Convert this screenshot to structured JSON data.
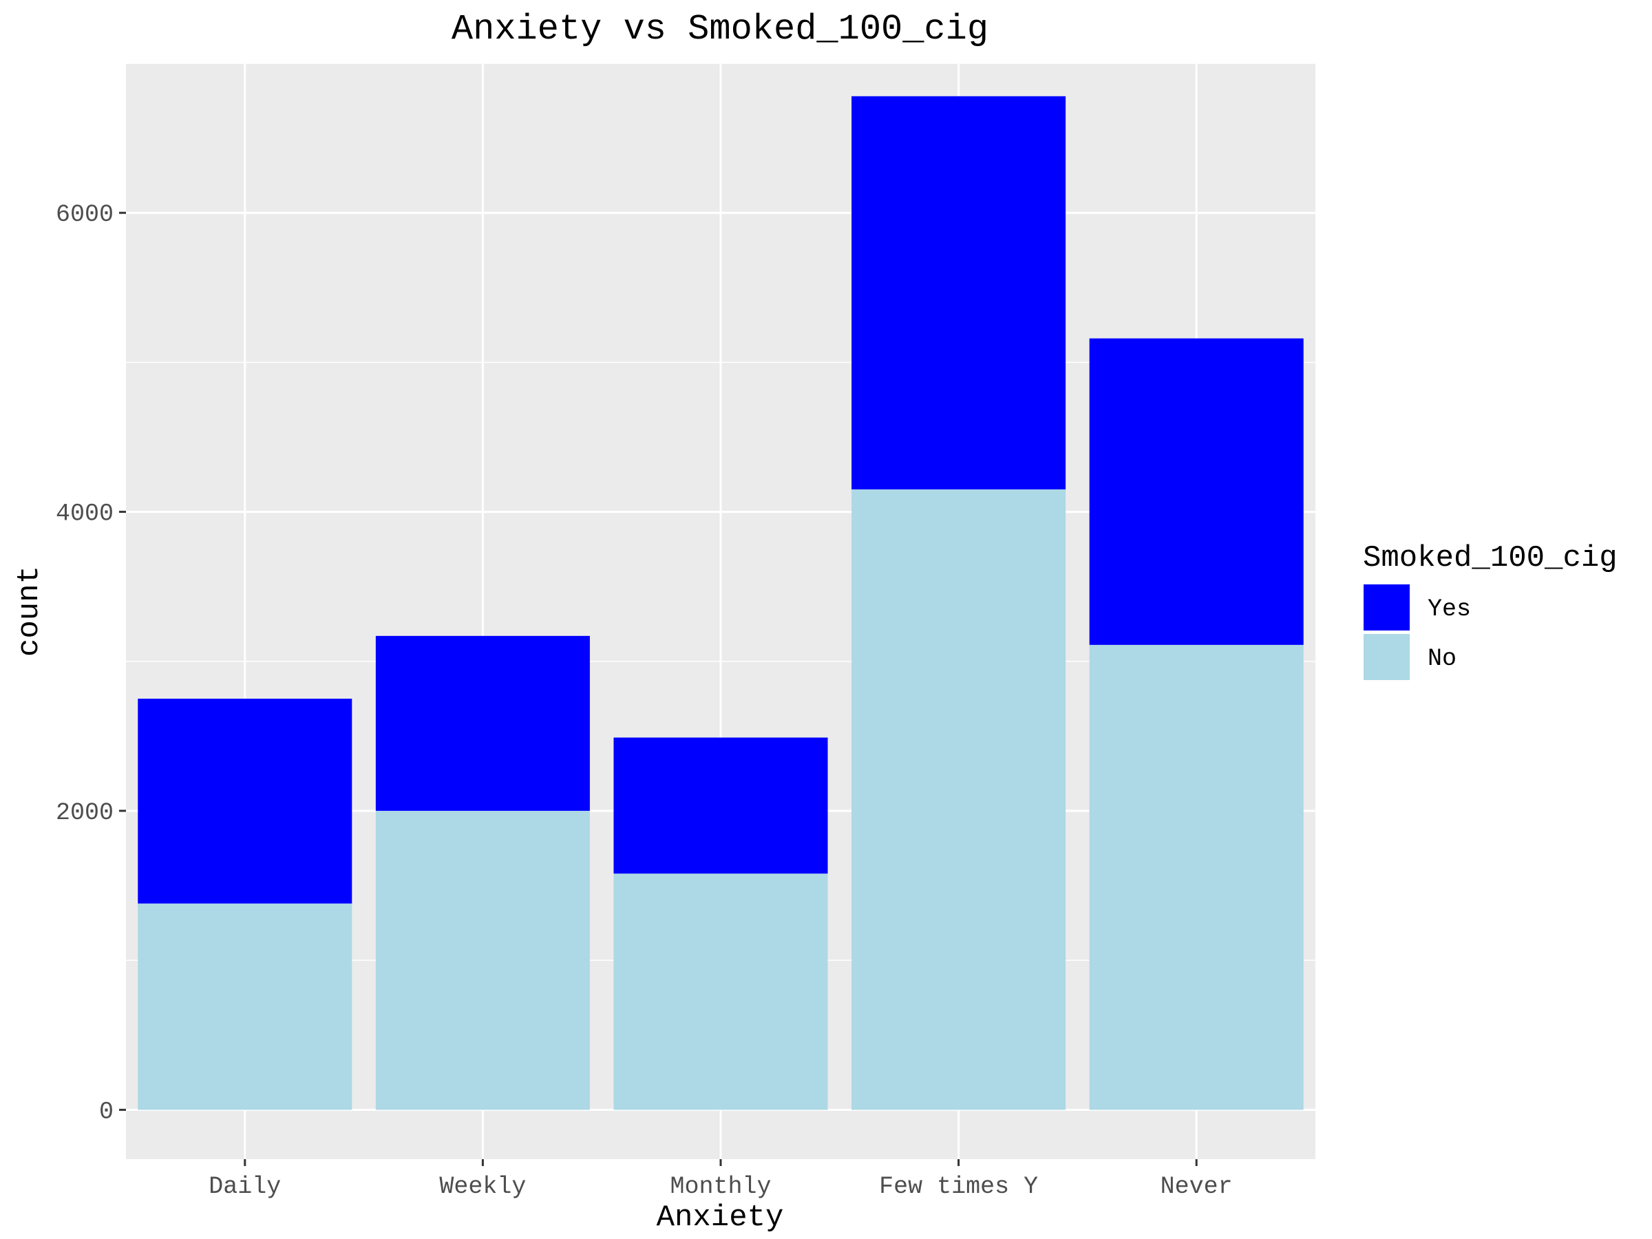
{
  "chart_data": {
    "type": "bar",
    "stacked": true,
    "title": "Anxiety vs Smoked_100_cig",
    "xlabel": "Anxiety",
    "ylabel": "count",
    "categories": [
      "Daily",
      "Weekly",
      "Monthly",
      "Few times Y",
      "Never"
    ],
    "series": [
      {
        "name": "No",
        "color": "#add8e6",
        "values": [
          1380,
          2000,
          1580,
          4150,
          3110
        ]
      },
      {
        "name": "Yes",
        "color": "#0000ff",
        "values": [
          1370,
          1170,
          910,
          2630,
          2050
        ]
      }
    ],
    "ylim": [
      -330,
      7000
    ],
    "yticks": [
      0,
      2000,
      4000,
      6000
    ],
    "grid": true,
    "panel_background": "#ebebeb",
    "legend": {
      "title": "Smoked_100_cig",
      "position": "right",
      "items": [
        {
          "label": "Yes",
          "color": "#0000ff"
        },
        {
          "label": "No",
          "color": "#add8e6"
        }
      ]
    }
  }
}
